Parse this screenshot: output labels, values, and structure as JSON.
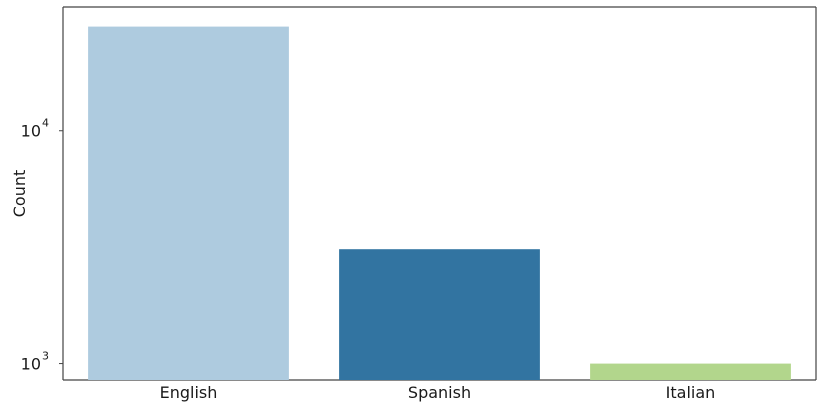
{
  "chart_data": {
    "type": "bar",
    "title": "",
    "xlabel": "",
    "ylabel": "Count",
    "yscale": "log",
    "ylim": [
      850,
      34000
    ],
    "categories": [
      "English",
      "Spanish",
      "Italian"
    ],
    "values": [
      28000,
      3100,
      1000
    ],
    "colors": [
      "#aecbdf",
      "#3274a1",
      "#b2d68c"
    ],
    "y_ticks": [
      {
        "value": 1000,
        "base": "10",
        "exp": "3"
      },
      {
        "value": 10000,
        "base": "10",
        "exp": "4"
      }
    ],
    "grid": false,
    "legend": "none"
  }
}
